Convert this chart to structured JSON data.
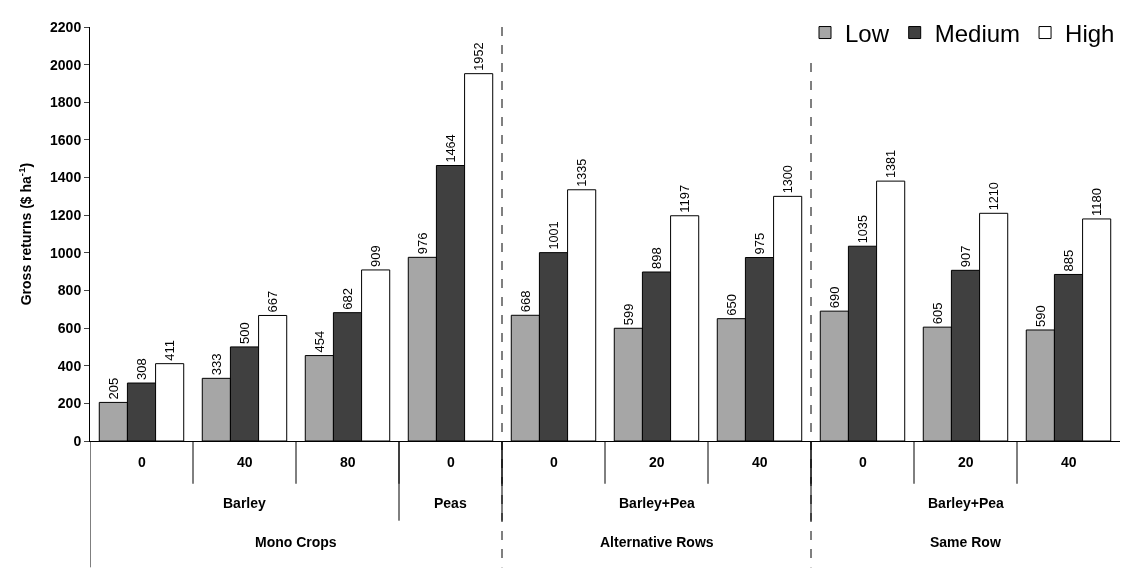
{
  "chart_data": {
    "type": "bar",
    "ylabel": "Gross returns ($ ha$^{-1}$)",
    "categories": [
      "0",
      "40",
      "80",
      "0",
      "0",
      "20",
      "40",
      "0",
      "20",
      "40"
    ],
    "series": [
      {
        "name": "Low",
        "color": "#a6a6a6",
        "values": [
          205,
          333,
          454,
          976,
          668,
          599,
          650,
          690,
          605,
          590
        ]
      },
      {
        "name": "Medium",
        "color": "#404040",
        "values": [
          308,
          500,
          682,
          1464,
          1001,
          898,
          975,
          1035,
          907,
          885
        ]
      },
      {
        "name": "High",
        "color": "#ffffff",
        "values": [
          411,
          667,
          909,
          1952,
          1335,
          1197,
          1300,
          1381,
          1210,
          1180
        ]
      }
    ],
    "ylim": [
      0,
      2200
    ],
    "yticks": [
      0,
      200,
      400,
      600,
      800,
      1000,
      1200,
      1400,
      1600,
      1800,
      2000,
      2200
    ],
    "annotations": [
      "Barley",
      "Peas",
      "Barley+Pea",
      "Barley+Pea",
      "Mono Crops",
      "Alternative Rows",
      "Same Row"
    ],
    "data_labels": true,
    "legend": "top right"
  }
}
